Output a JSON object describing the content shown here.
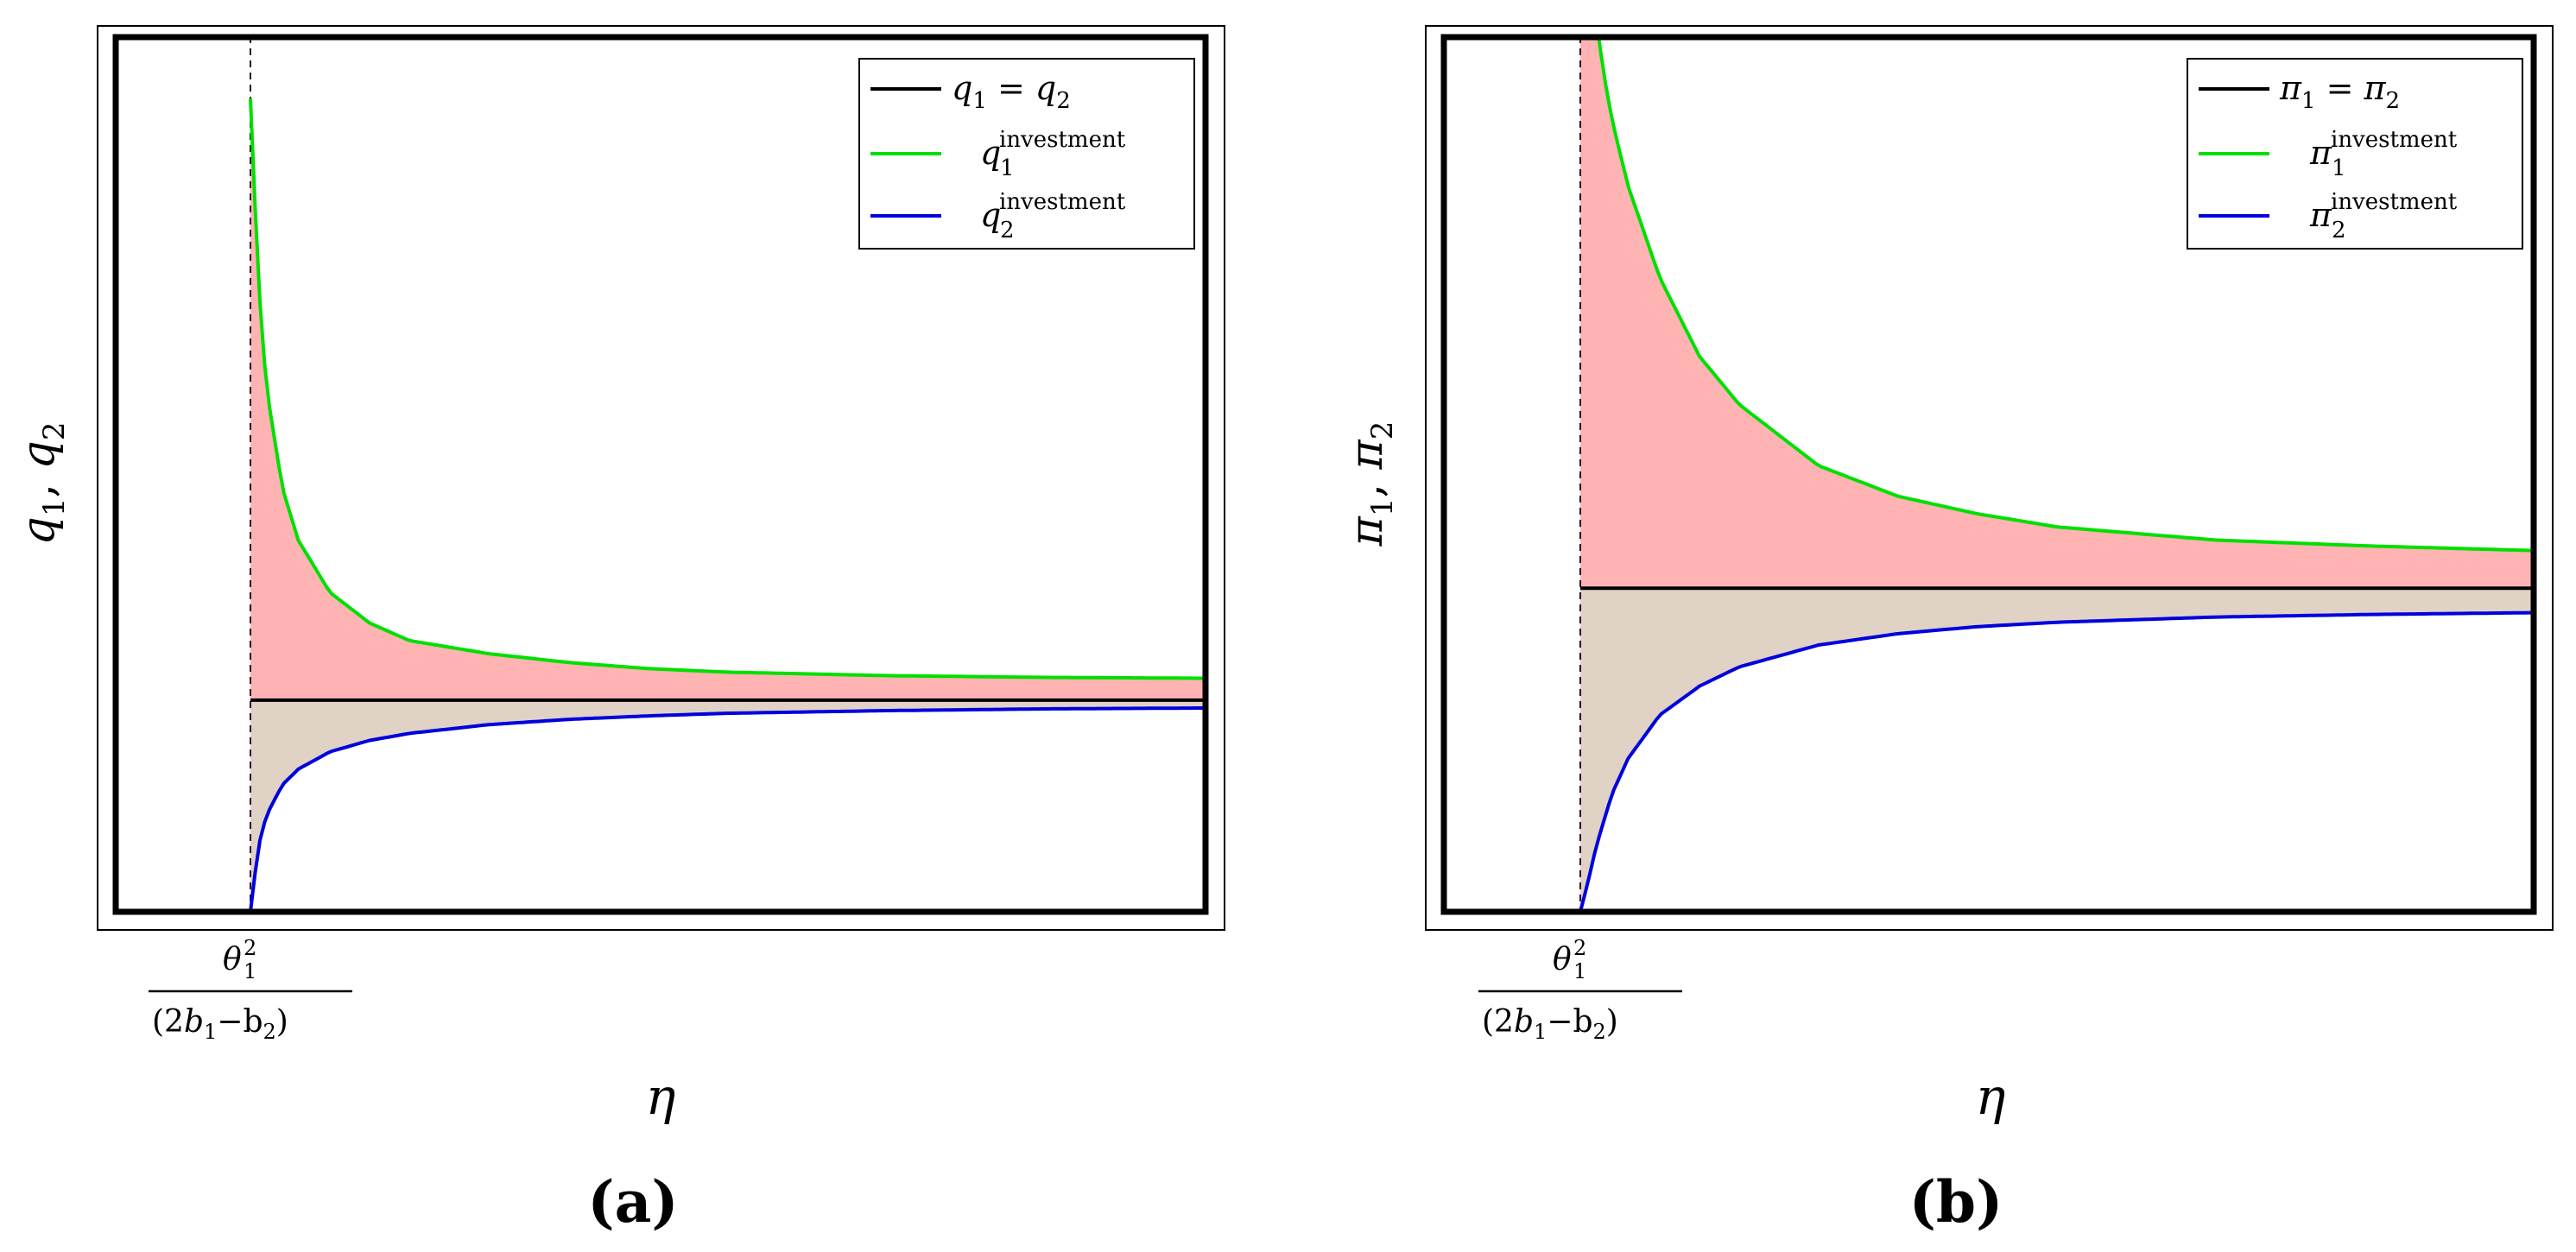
{
  "chart_data": [
    {
      "id": "a",
      "type": "area",
      "panel_label": "(a)",
      "xlabel": "η",
      "ylabel_var": "q",
      "ylabel": "q1, q2",
      "x_tick": {
        "value": 1,
        "numerator": "θ",
        "num_sub": "1",
        "num_sup": "2",
        "denominator": "(2b",
        "den_sub1": "1",
        "den_mid": "−b",
        "den_sub2": "2",
        "den_close": ")"
      },
      "xlim": [
        0,
        7
      ],
      "ylim": [
        0,
        1
      ],
      "reference_level": 0.242,
      "threshold_x": 1,
      "legend": {
        "position": "top-right",
        "entries": [
          {
            "var": "q",
            "sub1": "1",
            "eq": " = ",
            "var2": "q",
            "sub2": "2",
            "sup": "",
            "color": "#000000"
          },
          {
            "var": "q",
            "sub1": "1",
            "sup": "investment",
            "color": "#00e000"
          },
          {
            "var": "q",
            "sub1": "2",
            "sup": "investment",
            "color": "#0000dd"
          }
        ]
      },
      "series": [
        {
          "name": "q1 = q2",
          "color": "#000000",
          "x": [
            1.0,
            7.0
          ],
          "y": [
            0.242,
            0.242
          ]
        },
        {
          "name": "q1 investment",
          "color": "#00e000",
          "x": [
            1.0,
            1.05,
            1.1,
            1.2,
            1.3,
            1.5,
            1.75,
            2.0,
            2.5,
            3.0,
            3.5,
            4.0,
            5.0,
            6.0,
            7.0
          ],
          "y": [
            0.93,
            0.72,
            0.6,
            0.485,
            0.425,
            0.365,
            0.33,
            0.31,
            0.295,
            0.285,
            0.278,
            0.274,
            0.27,
            0.268,
            0.267
          ]
        },
        {
          "name": "q2 investment",
          "color": "#0000dd",
          "x": [
            1.0,
            1.05,
            1.1,
            1.2,
            1.3,
            1.5,
            1.75,
            2.0,
            2.5,
            3.0,
            3.5,
            4.0,
            5.0,
            6.0,
            7.0
          ],
          "y": [
            0.0,
            0.075,
            0.11,
            0.145,
            0.163,
            0.183,
            0.196,
            0.204,
            0.214,
            0.22,
            0.224,
            0.227,
            0.23,
            0.232,
            0.233
          ]
        }
      ],
      "fill_colors": {
        "above": "#ffb3b3",
        "below": "#e0d2c4"
      },
      "threshold_color": "#cc00cc"
    },
    {
      "id": "b",
      "type": "area",
      "panel_label": "(b)",
      "xlabel": "η",
      "ylabel_var": "π",
      "ylabel": "π1, π2",
      "x_tick": {
        "value": 1,
        "numerator": "θ",
        "num_sub": "1",
        "num_sup": "2",
        "denominator": "(2b",
        "den_sub1": "1",
        "den_mid": "−b",
        "den_sub2": "2",
        "den_close": ")"
      },
      "xlim": [
        0,
        7
      ],
      "ylim": [
        0,
        1
      ],
      "reference_level": 0.37,
      "threshold_x": 1,
      "legend": {
        "position": "top-right",
        "entries": [
          {
            "var": "π",
            "sub1": "1",
            "eq": " = ",
            "var2": "π",
            "sub2": "2",
            "sup": "",
            "color": "#000000"
          },
          {
            "var": "π",
            "sub1": "1",
            "sup": "investment",
            "color": "#00e000"
          },
          {
            "var": "π",
            "sub1": "2",
            "sup": "investment",
            "color": "#0000dd"
          }
        ]
      },
      "series": [
        {
          "name": "π1 = π2",
          "color": "#000000",
          "x": [
            1.0,
            7.0
          ],
          "y": [
            0.37,
            0.37
          ]
        },
        {
          "name": "π1 investment",
          "color": "#00e000",
          "x": [
            1.1,
            1.15,
            1.2,
            1.3,
            1.5,
            1.75,
            2.0,
            2.5,
            3.0,
            3.5,
            4.0,
            5.0,
            6.0,
            7.0
          ],
          "y": [
            1.02,
            0.955,
            0.905,
            0.83,
            0.725,
            0.635,
            0.58,
            0.51,
            0.475,
            0.455,
            0.44,
            0.425,
            0.418,
            0.413
          ]
        },
        {
          "name": "π2 investment",
          "color": "#0000dd",
          "x": [
            1.0,
            1.05,
            1.1,
            1.2,
            1.3,
            1.5,
            1.75,
            2.0,
            2.5,
            3.0,
            3.5,
            4.0,
            5.0,
            6.0,
            7.0
          ],
          "y": [
            0.0,
            0.035,
            0.075,
            0.135,
            0.175,
            0.225,
            0.258,
            0.28,
            0.305,
            0.318,
            0.326,
            0.331,
            0.337,
            0.34,
            0.342
          ]
        }
      ],
      "fill_colors": {
        "above": "#ffb3b3",
        "below": "#e0d2c4"
      },
      "threshold_color": "#cc00cc"
    }
  ]
}
